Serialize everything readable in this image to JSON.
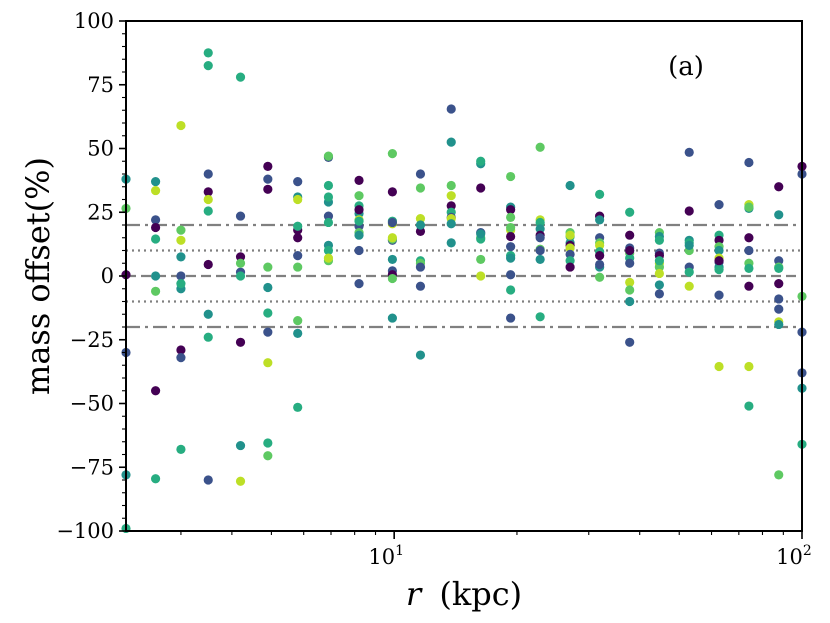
{
  "chart_data": {
    "type": "scatter",
    "panel_label": "(a)",
    "ylabel": "mass offset(%)",
    "xlabel_var": "r",
    "xlabel_unit": "(kpc)",
    "xscale": "log",
    "xlim": [
      2.2,
      100
    ],
    "ylim": [
      -100,
      100
    ],
    "yticks": [
      -100,
      -75,
      -50,
      -25,
      0,
      25,
      50,
      75,
      100
    ],
    "ytick_labels": [
      "−100",
      "−75",
      "−50",
      "−25",
      "0",
      "25",
      "50",
      "75",
      "100"
    ],
    "xtick_labels": [
      {
        "base": "10",
        "exp": "1",
        "value": 10
      },
      {
        "base": "10",
        "exp": "2",
        "value": 100
      }
    ],
    "reference_lines": [
      {
        "y": 20,
        "style": "dashdot"
      },
      {
        "y": -20,
        "style": "dashdot"
      },
      {
        "y": 10,
        "style": "dotted"
      },
      {
        "y": -10,
        "style": "dotted"
      },
      {
        "y": 0,
        "style": "dashed"
      }
    ],
    "line_color": "#808080",
    "palette": [
      "#440154",
      "#3b528b",
      "#21918c",
      "#27ad81",
      "#5ec962",
      "#bddf26"
    ],
    "radii": [
      2.2,
      2.6,
      3.0,
      3.5,
      4.2,
      4.9,
      5.8,
      6.9,
      8.2,
      9.9,
      11.6,
      13.8,
      16.3,
      19.3,
      22.8,
      27.0,
      31.9,
      37.8,
      44.7,
      52.9,
      62.6,
      74.1,
      87.7,
      100
    ],
    "points": [
      {
        "x": 2.2,
        "values": [
          0.5,
          -30,
          38,
          -78,
          -99,
          26.5
        ],
        "colors": [
          0,
          1,
          2,
          2,
          3,
          4
        ]
      },
      {
        "x": 2.6,
        "values": [
          -45,
          22,
          19,
          37,
          14.5,
          0,
          33.5,
          -6,
          -79.5
        ],
        "colors": [
          0,
          1,
          0,
          2,
          3,
          2,
          5,
          4,
          3
        ]
      },
      {
        "x": 3.0,
        "values": [
          -29,
          -32,
          0,
          -5,
          7.5,
          18,
          14,
          -3,
          -68,
          59
        ],
        "colors": [
          0,
          1,
          1,
          2,
          2,
          4,
          5,
          3,
          3,
          5
        ]
      },
      {
        "x": 3.5,
        "values": [
          33,
          4.5,
          40,
          -15,
          30,
          25.5,
          -24,
          82.5,
          87.5,
          -80
        ],
        "colors": [
          0,
          0,
          1,
          2,
          5,
          3,
          3,
          3,
          3,
          1
        ]
      },
      {
        "x": 4.2,
        "values": [
          -26,
          23.5,
          7.5,
          1.5,
          5,
          0,
          -66.5,
          78,
          -80.5
        ],
        "colors": [
          0,
          1,
          0,
          1,
          4,
          3,
          2,
          3,
          5
        ]
      },
      {
        "x": 4.9,
        "values": [
          43,
          34,
          38,
          3.5,
          -4.5,
          -22,
          -14.5,
          -65.5,
          -70.5,
          -34
        ],
        "colors": [
          0,
          0,
          1,
          4,
          2,
          1,
          3,
          3,
          4,
          5
        ]
      },
      {
        "x": 5.8,
        "values": [
          15,
          18,
          37,
          31,
          19.5,
          8,
          3.5,
          -17.5,
          -22.5,
          -51.5,
          30
        ],
        "colors": [
          0,
          0,
          1,
          2,
          3,
          1,
          4,
          4,
          2,
          3,
          5
        ]
      },
      {
        "x": 6.9,
        "values": [
          23.5,
          29,
          31,
          35.5,
          46.5,
          47,
          12,
          10,
          6,
          7,
          21
        ],
        "colors": [
          1,
          2,
          3,
          3,
          1,
          4,
          2,
          3,
          4,
          5,
          3
        ]
      },
      {
        "x": 8.2,
        "values": [
          37.5,
          31.5,
          27.5,
          24.5,
          19.5,
          17,
          22,
          10,
          16,
          21.5,
          -3,
          26
        ],
        "colors": [
          0,
          4,
          3,
          2,
          1,
          4,
          5,
          1,
          2,
          3,
          1,
          0
        ]
      },
      {
        "x": 9.9,
        "values": [
          33,
          48,
          21.5,
          20.5,
          14,
          14.5,
          6.5,
          2,
          0.5,
          -1,
          -16.5,
          21,
          15
        ],
        "colors": [
          0,
          4,
          3,
          5,
          1,
          4,
          2,
          1,
          0,
          4,
          2,
          1,
          5
        ]
      },
      {
        "x": 11.6,
        "values": [
          40,
          34.5,
          22.5,
          17.5,
          20,
          6,
          5,
          3.5,
          -4,
          -31
        ],
        "colors": [
          1,
          4,
          5,
          0,
          2,
          3,
          4,
          1,
          1,
          2
        ]
      },
      {
        "x": 13.8,
        "values": [
          65.5,
          52.5,
          35.5,
          31.5,
          27.5,
          25,
          23,
          22.5,
          20.5,
          13
        ],
        "colors": [
          1,
          2,
          4,
          5,
          0,
          3,
          1,
          5,
          2,
          2
        ]
      },
      {
        "x": 16.3,
        "values": [
          44,
          45,
          34.5,
          17,
          15,
          14.5,
          6.5,
          0,
          16.5
        ],
        "colors": [
          2,
          3,
          0,
          1,
          4,
          3,
          4,
          5,
          2
        ]
      },
      {
        "x": 19.3,
        "values": [
          39,
          27,
          26,
          23,
          18,
          15.5,
          11.5,
          8,
          7,
          0.5,
          -5.5,
          -16.5,
          19
        ],
        "colors": [
          4,
          2,
          0,
          4,
          5,
          0,
          1,
          3,
          2,
          1,
          3,
          1,
          4
        ]
      },
      {
        "x": 22.8,
        "values": [
          50.5,
          22,
          21,
          18.5,
          16,
          15,
          10.5,
          10,
          6.5,
          -16
        ],
        "colors": [
          4,
          5,
          3,
          2,
          0,
          1,
          4,
          1,
          2,
          3
        ]
      },
      {
        "x": 27.0,
        "values": [
          35.5,
          17,
          15.5,
          13,
          12,
          11,
          8.5,
          6,
          3.5,
          16
        ],
        "colors": [
          2,
          4,
          3,
          2,
          0,
          5,
          1,
          3,
          0,
          5
        ]
      },
      {
        "x": 31.9,
        "values": [
          32,
          23.5,
          22,
          15,
          13,
          12,
          9.5,
          8,
          3.5,
          -0.5,
          4.5
        ],
        "colors": [
          3,
          0,
          2,
          1,
          4,
          5,
          3,
          0,
          2,
          4,
          1
        ]
      },
      {
        "x": 37.8,
        "values": [
          25,
          16,
          11,
          10,
          9,
          7,
          5,
          -2.5,
          -5.5,
          -10,
          -26,
          10
        ],
        "colors": [
          3,
          0,
          1,
          2,
          4,
          3,
          1,
          5,
          4,
          2,
          1,
          0
        ]
      },
      {
        "x": 44.7,
        "values": [
          17,
          15.5,
          14,
          9,
          8,
          5,
          3.5,
          1,
          -3.5,
          -7,
          6
        ],
        "colors": [
          4,
          2,
          3,
          1,
          0,
          5,
          4,
          5,
          2,
          1,
          3
        ]
      },
      {
        "x": 52.9,
        "values": [
          48.5,
          25.5,
          14,
          13,
          10,
          3.5,
          1.5,
          -4,
          12
        ],
        "colors": [
          1,
          0,
          2,
          3,
          4,
          1,
          3,
          5,
          2
        ]
      },
      {
        "x": 62.6,
        "values": [
          28,
          16,
          14,
          11.5,
          10,
          7,
          5.5,
          3.5,
          2.5,
          -7.5,
          -35.5,
          6
        ],
        "colors": [
          1,
          3,
          0,
          4,
          2,
          5,
          1,
          2,
          3,
          1,
          5,
          0
        ]
      },
      {
        "x": 74.1,
        "values": [
          44.5,
          28,
          26.5,
          15,
          10,
          5,
          3,
          -4,
          -35.5,
          -51,
          27
        ],
        "colors": [
          1,
          5,
          2,
          0,
          1,
          4,
          3,
          0,
          5,
          3,
          4
        ]
      },
      {
        "x": 87.7,
        "values": [
          35,
          24,
          6,
          3.5,
          3,
          -3,
          -9,
          -13,
          -18,
          -19,
          -78
        ],
        "colors": [
          0,
          2,
          1,
          4,
          3,
          0,
          1,
          1,
          5,
          2,
          4
        ]
      },
      {
        "x": 100,
        "values": [
          40,
          43,
          -8,
          -22,
          -38,
          -44,
          -66
        ],
        "colors": [
          1,
          0,
          4,
          1,
          1,
          2,
          3
        ]
      }
    ]
  }
}
